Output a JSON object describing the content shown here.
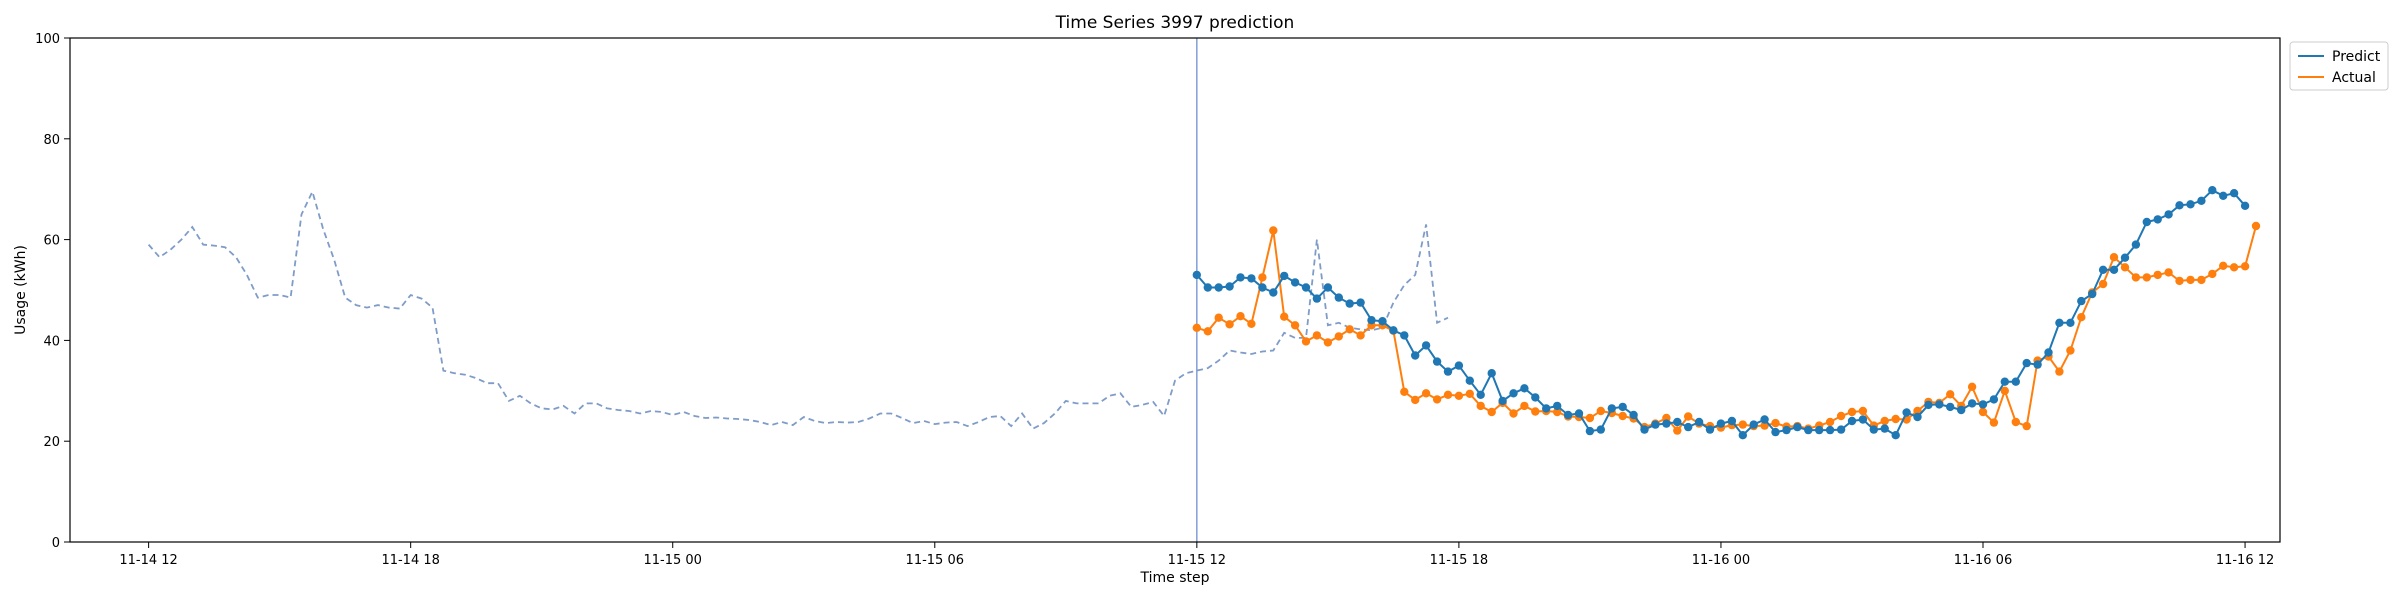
{
  "chart_data": {
    "type": "line",
    "title": "Time Series 3997 prediction",
    "xlabel": "Time step",
    "ylabel": "Usage (kWh)",
    "ylim": [
      0,
      100
    ],
    "xlim_hours": [
      -1.8,
      48.8
    ],
    "yticks": [
      0,
      20,
      40,
      60,
      80,
      100
    ],
    "xticks": [
      {
        "label": "11-14 12",
        "hour": 0
      },
      {
        "label": "11-14 18",
        "hour": 6
      },
      {
        "label": "11-15 00",
        "hour": 12
      },
      {
        "label": "11-15 06",
        "hour": 18
      },
      {
        "label": "11-15 12",
        "hour": 24
      },
      {
        "label": "11-15 18",
        "hour": 30
      },
      {
        "label": "11-16 00",
        "hour": 36
      },
      {
        "label": "11-16 06",
        "hour": 42
      },
      {
        "label": "11-16 12",
        "hour": 48
      }
    ],
    "step_hours": 0.25,
    "legend_position": "top-right outside",
    "forecast_start_hour": 24,
    "history": {
      "start_hour": 0,
      "color": "#7f9cc8",
      "values": [
        59,
        56.5,
        58,
        60,
        62.5,
        59,
        58.8,
        58.5,
        56.5,
        53,
        48.5,
        49,
        49,
        48.5,
        65,
        69.5,
        62,
        56,
        48.5,
        47,
        46.5,
        47,
        46.5,
        46.3,
        49,
        48.3,
        46.5,
        34,
        33.5,
        33.2,
        32.5,
        31.5,
        31.5,
        28,
        29,
        27.5,
        26.5,
        26.3,
        27,
        25.5,
        27.5,
        27.5,
        26.5,
        26.2,
        26,
        25.5,
        26,
        25.8,
        25.2,
        25.8,
        25,
        24.6,
        24.7,
        24.5,
        24.4,
        24.2,
        23.8,
        23.2,
        23.8,
        23.2,
        24.8,
        24,
        23.6,
        23.8,
        23.7,
        23.8,
        24.5,
        25.5,
        25.5,
        24.6,
        23.6,
        24,
        23.4,
        23.7,
        23.8,
        23,
        23.8,
        24.8,
        25,
        23,
        25.5,
        22.5,
        23.6,
        25.5,
        28,
        27.5,
        27.5,
        27.5,
        29,
        29.5,
        26.8,
        27.2,
        27.8,
        25,
        32,
        33.5,
        34,
        34.5,
        36,
        38,
        37.6,
        37.3,
        37.8,
        38,
        41.5,
        40.5,
        40.5,
        60,
        43,
        43.5,
        42.5,
        42.2,
        42,
        42.5,
        47.5,
        51,
        53,
        63,
        43.5,
        44.5
      ]
    },
    "series": [
      {
        "name": "Predict",
        "color": "#1f77b4",
        "values": [
          53,
          50.5,
          50.5,
          50.7,
          52.5,
          52.3,
          50.5,
          49.5,
          52.8,
          51.5,
          50.5,
          48.3,
          50.5,
          48.5,
          47.3,
          47.5,
          44,
          43.8,
          42,
          41,
          37,
          39,
          35.8,
          33.8,
          35,
          32,
          29.2,
          33.5,
          28,
          29.5,
          30.5,
          28.7,
          26.5,
          27,
          25.2,
          25.5,
          22,
          22.3,
          26.5,
          26.8,
          25.2,
          22.3,
          23.3,
          23.5,
          23.8,
          22.8,
          23.8,
          22.3,
          23.5,
          24,
          21.2,
          23.3,
          24.3,
          21.8,
          22.2,
          22.8,
          22.2,
          22.2,
          22.2,
          22.3,
          24,
          24.3,
          22.3,
          22.5,
          21.2,
          25.7,
          24.8,
          27.2,
          27.3,
          26.8,
          26.2,
          27.5,
          27.3,
          28.3,
          31.8,
          31.8,
          35.5,
          35.2,
          37.6,
          43.5,
          43.5,
          47.8,
          49.2,
          54,
          54,
          56.4,
          59,
          63.5,
          64,
          65,
          66.8,
          67,
          67.7,
          69.8,
          68.7,
          69.2,
          66.7
        ]
      },
      {
        "name": "Actual",
        "color": "#ff7f0e",
        "values": [
          42.5,
          41.8,
          44.5,
          43.2,
          44.8,
          43.3,
          52.5,
          61.8,
          44.7,
          43,
          39.8,
          41,
          39.6,
          40.8,
          42.2,
          41,
          43,
          43,
          41.9,
          29.8,
          28.2,
          29.5,
          28.3,
          29.2,
          29,
          29.4,
          27,
          25.8,
          27.6,
          25.5,
          27,
          25.9,
          26,
          25.8,
          24.9,
          24.8,
          24.6,
          26,
          25.6,
          25,
          24.5,
          22.8,
          23.5,
          24.6,
          22.1,
          24.9,
          23.5,
          23,
          22.7,
          23.2,
          23.3,
          23,
          23.1,
          23.6,
          22.9,
          23,
          22.5,
          23.1,
          23.8,
          25,
          25.8,
          26,
          23.1,
          24,
          24.4,
          24.3,
          26,
          27.8,
          27.6,
          29.3,
          27,
          30.8,
          25.8,
          23.7,
          30,
          23.8,
          23,
          36,
          36.8,
          33.8,
          38,
          44.6,
          49.5,
          51.2,
          56.5,
          54.5,
          52.5,
          52.5,
          53,
          53.5,
          51.8,
          52,
          52,
          53.2,
          54.8,
          54.5,
          54.7,
          62.7
        ]
      }
    ]
  }
}
